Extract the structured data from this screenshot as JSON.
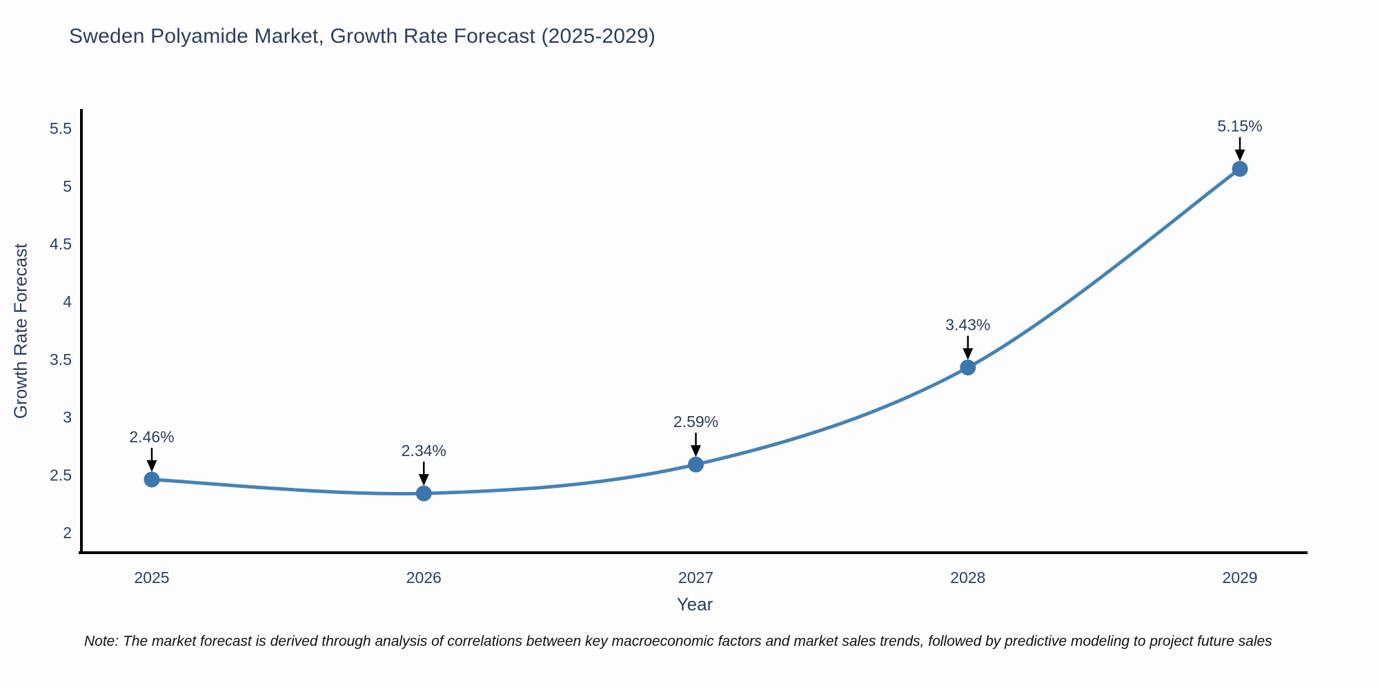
{
  "page": {
    "title": "Sweden Polyamide Market, Growth Rate Forecast (2025-2029)",
    "note": "Note: The market forecast is derived through analysis of correlations between key macroeconomic factors and market sales trends, followed by predictive modeling to project future sales"
  },
  "chart_data": {
    "type": "line",
    "title": "Sweden Polyamide Market, Growth Rate Forecast (2025-2029)",
    "categories": [
      "2025",
      "2026",
      "2027",
      "2028",
      "2029"
    ],
    "values": [
      2.46,
      2.34,
      2.59,
      3.43,
      5.15
    ],
    "point_labels": [
      "2.46%",
      "2.34%",
      "2.59%",
      "3.43%",
      "5.15%"
    ],
    "xlabel": "Year",
    "ylabel": "Growth Rate Forecast",
    "yticks": [
      2,
      2.5,
      3,
      3.5,
      4,
      4.5,
      5,
      5.5
    ],
    "ylim": [
      1.82,
      5.66
    ],
    "line_shape": "spline",
    "grid": false,
    "legend_position": "none",
    "annotations_arrow": "down",
    "colors": {
      "line": "#4682b4",
      "marker": "#3d76ad",
      "text": "#2a3f5f",
      "axis": "#000000",
      "arrow": "#000000",
      "background": "#fdfdfe"
    }
  }
}
